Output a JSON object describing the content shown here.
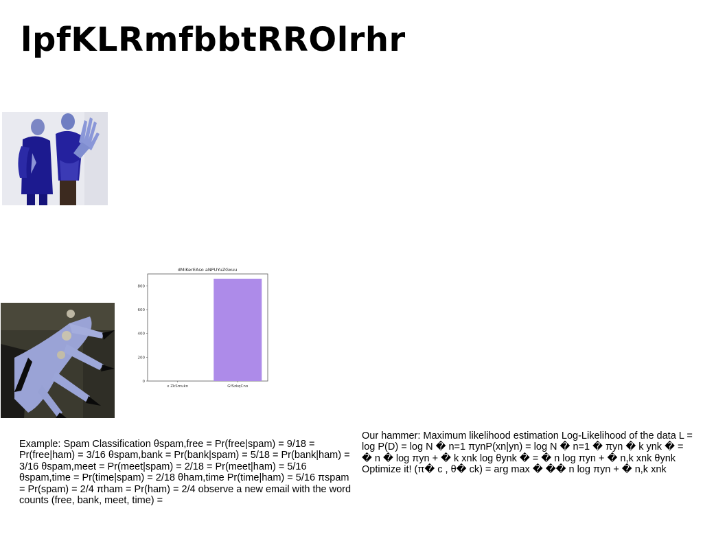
{
  "title": "lpfKLRmfbbtRROlrhr",
  "images": [
    {
      "icon": "photo-figures-blue-outfits"
    },
    {
      "icon": "photo-blue-hand-rings"
    }
  ],
  "chart_data": {
    "type": "bar",
    "title": "dMiKerEAso aNPUYuZGxuu",
    "categories": [
      "x ZkSmukn",
      "GfSzkqCno"
    ],
    "values": [
      0,
      860
    ],
    "ylim": [
      0,
      900
    ],
    "yticks": [
      0,
      200,
      400,
      600,
      800
    ],
    "bar_color": "#ad8be9",
    "grid": false
  },
  "text": {
    "left": "Example: Spam Classification θspam,free = Pr(free|spam) = 9/18 = Pr(free|ham) = 3/16 θspam,bank = Pr(bank|spam) = 5/18 = Pr(bank|ham) = 3/16 θspam,meet = Pr(meet|spam) = 2/18 = Pr(meet|ham) = 5/16 θspam,time = Pr(time|spam) = 2/18 θham,time Pr(time|ham) = 5/16 πspam = Pr(spam) = 2/4 πham = Pr(ham) = 2/4 observe a new email with the word counts (free, bank, meet, time) =",
    "right": "Our hammer: Maximum likelihood estimation Log-Likelihood of the data L = log P(D) = log N � n=1 πynP(xn|yn) = log N � n=1 � πyn � k ynk � = � n � log πyn + � k xnk log θynk � = � n log πyn + � n,k xnk θynk Optimize it! (π� c , θ� ck) = arg max � �� n log πyn + � n,k xnk"
  }
}
